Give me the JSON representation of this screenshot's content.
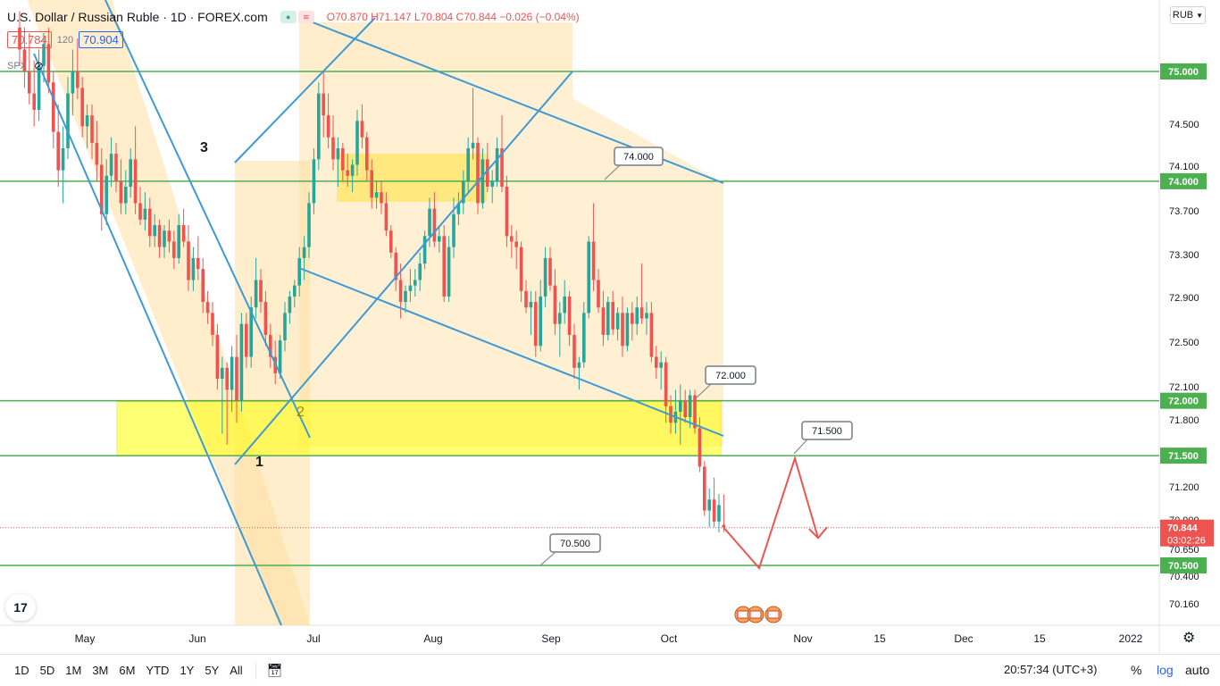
{
  "header": {
    "symbol_title": "U.S. Dollar / Russian Ruble · 1D · FOREX.com",
    "ohlc": "O70.870 H71.147 L70.804 C70.844 −0.026 (−0.04%)",
    "bid": "70.784",
    "spread": "120",
    "ask": "70.904",
    "compare_symbol": "SPX",
    "currency_label": "RUB",
    "currency_icon": "chevron-down-icon"
  },
  "toolbar": {
    "timeframes": [
      "1D",
      "5D",
      "1M",
      "3M",
      "6M",
      "YTD",
      "1Y",
      "5Y",
      "All"
    ],
    "clock": "20:57:34 (UTC+3)",
    "percent_label": "%",
    "log_label": "log",
    "auto_label": "auto"
  },
  "colors": {
    "up": "#26a69a",
    "down": "#ef5350",
    "level_line": "#4caf50",
    "trend_line": "#3d9ad6",
    "zone_yellow": "#ffff00",
    "zone_orange": "#ffdea0",
    "projection": "#ef5350"
  },
  "chart_data": {
    "type": "candlestick",
    "title": "U.S. Dollar / Russian Ruble",
    "timeframe": "1D",
    "x_ticks": [
      "May",
      "Jun",
      "Jul",
      "Aug",
      "Sep",
      "Oct",
      "Nov",
      "15",
      "Dec",
      "15",
      "2022"
    ],
    "y_ticks": [
      "74.500",
      "74.100",
      "73.700",
      "73.300",
      "72.900",
      "72.500",
      "72.100",
      "71.800",
      "71.200",
      "70.900",
      "70.650",
      "70.400",
      "70.160"
    ],
    "ylim": [
      70.0,
      75.6
    ],
    "price_levels": [
      {
        "label": "75.000",
        "value": 75.0
      },
      {
        "label": "74.000",
        "value": 74.0
      },
      {
        "label": "72.000",
        "value": 72.0
      },
      {
        "label": "71.500",
        "value": 71.5
      },
      {
        "label": "70.500",
        "value": 70.5
      }
    ],
    "last_price": {
      "label": "70.844",
      "value": 70.844,
      "countdown": "03:02:26"
    },
    "annotations": [
      {
        "text": "74.000",
        "value": 74.0
      },
      {
        "text": "72.000",
        "value": 72.0
      },
      {
        "text": "71.500",
        "value": 71.5
      },
      {
        "text": "70.500",
        "value": 70.5
      }
    ],
    "pattern_labels": [
      "1",
      "2",
      "3"
    ],
    "candles": [
      {
        "o": 75.4,
        "h": 75.55,
        "l": 75.05,
        "c": 75.2
      },
      {
        "o": 75.2,
        "h": 75.4,
        "l": 74.85,
        "c": 75.0
      },
      {
        "o": 75.0,
        "h": 75.35,
        "l": 74.7,
        "c": 74.8
      },
      {
        "o": 74.8,
        "h": 75.1,
        "l": 74.5,
        "c": 74.65
      },
      {
        "o": 74.65,
        "h": 75.2,
        "l": 74.55,
        "c": 75.05
      },
      {
        "o": 75.05,
        "h": 75.35,
        "l": 74.9,
        "c": 75.25
      },
      {
        "o": 75.25,
        "h": 75.4,
        "l": 74.8,
        "c": 74.9
      },
      {
        "o": 74.9,
        "h": 75.0,
        "l": 74.3,
        "c": 74.45
      },
      {
        "o": 74.45,
        "h": 74.7,
        "l": 73.95,
        "c": 74.1
      },
      {
        "o": 74.1,
        "h": 74.5,
        "l": 73.8,
        "c": 74.3
      },
      {
        "o": 74.3,
        "h": 74.95,
        "l": 74.2,
        "c": 74.8
      },
      {
        "o": 74.8,
        "h": 75.2,
        "l": 74.6,
        "c": 75.0
      },
      {
        "o": 75.0,
        "h": 75.3,
        "l": 74.75,
        "c": 74.85
      },
      {
        "o": 74.85,
        "h": 74.95,
        "l": 74.4,
        "c": 74.5
      },
      {
        "o": 74.5,
        "h": 74.7,
        "l": 74.3,
        "c": 74.6
      },
      {
        "o": 74.6,
        "h": 74.7,
        "l": 74.2,
        "c": 74.35
      },
      {
        "o": 74.35,
        "h": 74.55,
        "l": 74.0,
        "c": 74.15
      },
      {
        "o": 74.15,
        "h": 74.3,
        "l": 73.55,
        "c": 73.7
      },
      {
        "o": 73.7,
        "h": 74.2,
        "l": 73.6,
        "c": 74.05
      },
      {
        "o": 74.05,
        "h": 74.4,
        "l": 73.95,
        "c": 74.25
      },
      {
        "o": 74.25,
        "h": 74.35,
        "l": 73.9,
        "c": 74.0
      },
      {
        "o": 74.0,
        "h": 74.2,
        "l": 73.7,
        "c": 73.8
      },
      {
        "o": 73.8,
        "h": 74.1,
        "l": 73.7,
        "c": 73.95
      },
      {
        "o": 73.95,
        "h": 74.3,
        "l": 73.85,
        "c": 74.2
      },
      {
        "o": 74.2,
        "h": 74.5,
        "l": 73.7,
        "c": 73.8
      },
      {
        "o": 73.8,
        "h": 73.95,
        "l": 73.6,
        "c": 73.65
      },
      {
        "o": 73.65,
        "h": 73.9,
        "l": 73.55,
        "c": 73.75
      },
      {
        "o": 73.75,
        "h": 73.85,
        "l": 73.4,
        "c": 73.5
      },
      {
        "o": 73.5,
        "h": 73.7,
        "l": 73.4,
        "c": 73.6
      },
      {
        "o": 73.6,
        "h": 73.65,
        "l": 73.3,
        "c": 73.4
      },
      {
        "o": 73.4,
        "h": 73.6,
        "l": 73.3,
        "c": 73.55
      },
      {
        "o": 73.55,
        "h": 73.65,
        "l": 73.35,
        "c": 73.45
      },
      {
        "o": 73.45,
        "h": 73.55,
        "l": 73.2,
        "c": 73.3
      },
      {
        "o": 73.3,
        "h": 73.7,
        "l": 73.25,
        "c": 73.6
      },
      {
        "o": 73.6,
        "h": 73.75,
        "l": 73.4,
        "c": 73.45
      },
      {
        "o": 73.45,
        "h": 73.6,
        "l": 73.0,
        "c": 73.1
      },
      {
        "o": 73.1,
        "h": 73.4,
        "l": 73.0,
        "c": 73.3
      },
      {
        "o": 73.3,
        "h": 73.5,
        "l": 73.1,
        "c": 73.2
      },
      {
        "o": 73.2,
        "h": 73.3,
        "l": 72.8,
        "c": 72.9
      },
      {
        "o": 72.9,
        "h": 73.0,
        "l": 72.7,
        "c": 72.8
      },
      {
        "o": 72.8,
        "h": 72.9,
        "l": 72.5,
        "c": 72.6
      },
      {
        "o": 72.6,
        "h": 72.7,
        "l": 72.1,
        "c": 72.2
      },
      {
        "o": 72.2,
        "h": 72.4,
        "l": 71.7,
        "c": 72.3
      },
      {
        "o": 72.3,
        "h": 72.35,
        "l": 71.6,
        "c": 72.1
      },
      {
        "o": 72.1,
        "h": 72.5,
        "l": 71.9,
        "c": 72.4
      },
      {
        "o": 72.4,
        "h": 72.6,
        "l": 71.8,
        "c": 72.0
      },
      {
        "o": 72.0,
        "h": 72.8,
        "l": 71.9,
        "c": 72.7
      },
      {
        "o": 72.7,
        "h": 72.8,
        "l": 72.3,
        "c": 72.4
      },
      {
        "o": 72.4,
        "h": 72.95,
        "l": 72.3,
        "c": 72.85
      },
      {
        "o": 72.85,
        "h": 73.3,
        "l": 72.75,
        "c": 73.1
      },
      {
        "o": 73.1,
        "h": 73.2,
        "l": 72.8,
        "c": 72.9
      },
      {
        "o": 72.9,
        "h": 73.0,
        "l": 72.5,
        "c": 72.6
      },
      {
        "o": 72.6,
        "h": 72.7,
        "l": 72.3,
        "c": 72.4
      },
      {
        "o": 72.4,
        "h": 72.55,
        "l": 72.15,
        "c": 72.25
      },
      {
        "o": 72.25,
        "h": 72.6,
        "l": 72.2,
        "c": 72.55
      },
      {
        "o": 72.55,
        "h": 72.9,
        "l": 72.45,
        "c": 72.8
      },
      {
        "o": 72.8,
        "h": 73.0,
        "l": 72.7,
        "c": 72.95
      },
      {
        "o": 72.95,
        "h": 73.1,
        "l": 72.85,
        "c": 73.05
      },
      {
        "o": 73.05,
        "h": 73.4,
        "l": 72.95,
        "c": 73.3
      },
      {
        "o": 73.3,
        "h": 73.5,
        "l": 73.1,
        "c": 73.4
      },
      {
        "o": 73.4,
        "h": 73.9,
        "l": 73.3,
        "c": 73.8
      },
      {
        "o": 73.8,
        "h": 74.3,
        "l": 73.7,
        "c": 74.2
      },
      {
        "o": 74.2,
        "h": 74.9,
        "l": 74.1,
        "c": 74.8
      },
      {
        "o": 74.8,
        "h": 75.0,
        "l": 74.4,
        "c": 74.6
      },
      {
        "o": 74.6,
        "h": 74.8,
        "l": 74.3,
        "c": 74.4
      },
      {
        "o": 74.4,
        "h": 74.6,
        "l": 74.1,
        "c": 74.2
      },
      {
        "o": 74.2,
        "h": 74.4,
        "l": 73.95,
        "c": 74.3
      },
      {
        "o": 74.3,
        "h": 74.35,
        "l": 74.0,
        "c": 74.1
      },
      {
        "o": 74.1,
        "h": 74.25,
        "l": 73.95,
        "c": 74.05
      },
      {
        "o": 74.05,
        "h": 74.2,
        "l": 73.9,
        "c": 74.15
      },
      {
        "o": 74.15,
        "h": 74.65,
        "l": 74.05,
        "c": 74.55
      },
      {
        "o": 74.55,
        "h": 74.7,
        "l": 74.3,
        "c": 74.4
      },
      {
        "o": 74.4,
        "h": 74.45,
        "l": 74.0,
        "c": 74.1
      },
      {
        "o": 74.1,
        "h": 74.2,
        "l": 73.75,
        "c": 73.85
      },
      {
        "o": 73.85,
        "h": 74.0,
        "l": 73.75,
        "c": 73.9
      },
      {
        "o": 73.9,
        "h": 74.0,
        "l": 73.7,
        "c": 73.8
      },
      {
        "o": 73.8,
        "h": 73.9,
        "l": 73.5,
        "c": 73.55
      },
      {
        "o": 73.55,
        "h": 73.6,
        "l": 73.3,
        "c": 73.35
      },
      {
        "o": 73.35,
        "h": 73.4,
        "l": 73.0,
        "c": 73.1
      },
      {
        "o": 73.1,
        "h": 73.25,
        "l": 72.75,
        "c": 72.9
      },
      {
        "o": 72.9,
        "h": 73.05,
        "l": 72.8,
        "c": 73.0
      },
      {
        "o": 73.0,
        "h": 73.2,
        "l": 72.9,
        "c": 73.05
      },
      {
        "o": 73.05,
        "h": 73.2,
        "l": 72.95,
        "c": 73.1
      },
      {
        "o": 73.1,
        "h": 73.35,
        "l": 73.0,
        "c": 73.25
      },
      {
        "o": 73.25,
        "h": 73.55,
        "l": 73.2,
        "c": 73.5
      },
      {
        "o": 73.5,
        "h": 73.85,
        "l": 73.4,
        "c": 73.75
      },
      {
        "o": 73.75,
        "h": 73.9,
        "l": 73.4,
        "c": 73.45
      },
      {
        "o": 73.45,
        "h": 73.6,
        "l": 73.35,
        "c": 73.5
      },
      {
        "o": 73.5,
        "h": 73.6,
        "l": 72.9,
        "c": 72.95
      },
      {
        "o": 72.95,
        "h": 73.5,
        "l": 72.9,
        "c": 73.4
      },
      {
        "o": 73.4,
        "h": 73.85,
        "l": 73.3,
        "c": 73.7
      },
      {
        "o": 73.7,
        "h": 73.9,
        "l": 73.6,
        "c": 73.8
      },
      {
        "o": 73.8,
        "h": 74.1,
        "l": 73.7,
        "c": 74.0
      },
      {
        "o": 74.0,
        "h": 74.4,
        "l": 73.9,
        "c": 74.3
      },
      {
        "o": 74.3,
        "h": 74.85,
        "l": 74.2,
        "c": 74.35
      },
      {
        "o": 74.35,
        "h": 74.4,
        "l": 73.7,
        "c": 73.8
      },
      {
        "o": 73.8,
        "h": 74.3,
        "l": 73.75,
        "c": 74.2
      },
      {
        "o": 74.2,
        "h": 74.35,
        "l": 73.9,
        "c": 73.95
      },
      {
        "o": 73.95,
        "h": 74.1,
        "l": 73.8,
        "c": 74.0
      },
      {
        "o": 74.0,
        "h": 74.4,
        "l": 73.95,
        "c": 74.3
      },
      {
        "o": 74.3,
        "h": 74.6,
        "l": 73.9,
        "c": 73.95
      },
      {
        "o": 73.95,
        "h": 74.05,
        "l": 73.4,
        "c": 73.5
      },
      {
        "o": 73.5,
        "h": 73.6,
        "l": 73.3,
        "c": 73.45
      },
      {
        "o": 73.45,
        "h": 73.55,
        "l": 73.2,
        "c": 73.4
      },
      {
        "o": 73.4,
        "h": 73.45,
        "l": 72.9,
        "c": 73.0
      },
      {
        "o": 73.0,
        "h": 73.1,
        "l": 72.8,
        "c": 72.85
      },
      {
        "o": 72.85,
        "h": 73.0,
        "l": 72.6,
        "c": 72.9
      },
      {
        "o": 72.9,
        "h": 73.0,
        "l": 72.4,
        "c": 72.5
      },
      {
        "o": 72.5,
        "h": 73.1,
        "l": 72.45,
        "c": 72.95
      },
      {
        "o": 72.95,
        "h": 73.4,
        "l": 72.85,
        "c": 73.3
      },
      {
        "o": 73.3,
        "h": 73.4,
        "l": 73.0,
        "c": 73.05
      },
      {
        "o": 73.05,
        "h": 73.2,
        "l": 72.6,
        "c": 72.7
      },
      {
        "o": 72.7,
        "h": 72.9,
        "l": 72.4,
        "c": 72.8
      },
      {
        "o": 72.8,
        "h": 73.1,
        "l": 72.7,
        "c": 72.95
      },
      {
        "o": 72.95,
        "h": 73.0,
        "l": 72.5,
        "c": 72.6
      },
      {
        "o": 72.6,
        "h": 72.7,
        "l": 72.2,
        "c": 72.3
      },
      {
        "o": 72.3,
        "h": 72.4,
        "l": 72.1,
        "c": 72.35
      },
      {
        "o": 72.35,
        "h": 72.9,
        "l": 72.3,
        "c": 72.8
      },
      {
        "o": 72.8,
        "h": 73.5,
        "l": 72.75,
        "c": 73.45
      },
      {
        "o": 73.45,
        "h": 73.8,
        "l": 73.0,
        "c": 73.1
      },
      {
        "o": 73.1,
        "h": 73.2,
        "l": 72.8,
        "c": 72.85
      },
      {
        "o": 72.85,
        "h": 73.0,
        "l": 72.5,
        "c": 72.6
      },
      {
        "o": 72.6,
        "h": 72.95,
        "l": 72.55,
        "c": 72.9
      },
      {
        "o": 72.9,
        "h": 73.0,
        "l": 72.6,
        "c": 72.65
      },
      {
        "o": 72.65,
        "h": 72.85,
        "l": 72.55,
        "c": 72.8
      },
      {
        "o": 72.8,
        "h": 72.95,
        "l": 72.4,
        "c": 72.5
      },
      {
        "o": 72.5,
        "h": 72.85,
        "l": 72.45,
        "c": 72.8
      },
      {
        "o": 72.8,
        "h": 72.9,
        "l": 72.55,
        "c": 72.7
      },
      {
        "o": 72.7,
        "h": 72.95,
        "l": 72.6,
        "c": 72.85
      },
      {
        "o": 72.85,
        "h": 73.25,
        "l": 72.7,
        "c": 72.75
      },
      {
        "o": 72.75,
        "h": 72.9,
        "l": 72.6,
        "c": 72.8
      },
      {
        "o": 72.8,
        "h": 72.9,
        "l": 72.35,
        "c": 72.4
      },
      {
        "o": 72.4,
        "h": 72.5,
        "l": 72.2,
        "c": 72.3
      },
      {
        "o": 72.3,
        "h": 72.45,
        "l": 72.1,
        "c": 72.35
      },
      {
        "o": 72.35,
        "h": 72.4,
        "l": 71.8,
        "c": 71.95
      },
      {
        "o": 71.95,
        "h": 72.05,
        "l": 71.7,
        "c": 71.8
      },
      {
        "o": 71.8,
        "h": 72.1,
        "l": 71.7,
        "c": 71.9
      },
      {
        "o": 71.9,
        "h": 72.15,
        "l": 71.6,
        "c": 72.0
      },
      {
        "o": 72.0,
        "h": 72.1,
        "l": 71.8,
        "c": 71.85
      },
      {
        "o": 71.85,
        "h": 72.1,
        "l": 71.75,
        "c": 72.05
      },
      {
        "o": 72.05,
        "h": 72.1,
        "l": 71.7,
        "c": 71.75
      },
      {
        "o": 71.75,
        "h": 71.85,
        "l": 71.35,
        "c": 71.4
      },
      {
        "o": 71.4,
        "h": 71.45,
        "l": 70.95,
        "c": 71.0
      },
      {
        "o": 71.0,
        "h": 71.2,
        "l": 70.85,
        "c": 71.1
      },
      {
        "o": 71.1,
        "h": 71.3,
        "l": 70.85,
        "c": 70.9
      },
      {
        "o": 70.9,
        "h": 71.15,
        "l": 70.8,
        "c": 71.05
      },
      {
        "o": 70.87,
        "h": 71.147,
        "l": 70.804,
        "c": 70.844
      }
    ]
  }
}
